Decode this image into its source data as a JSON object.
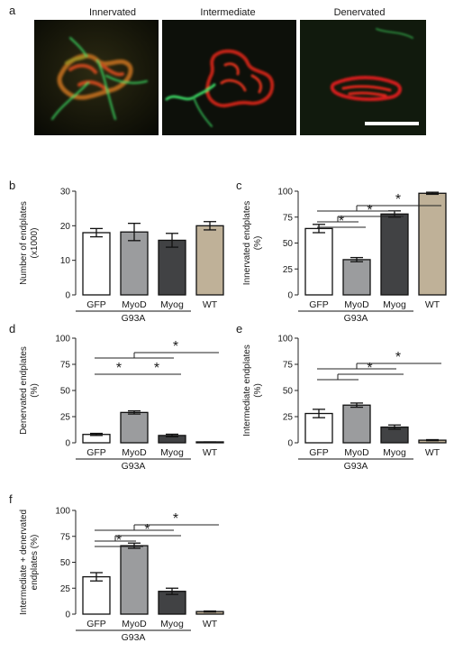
{
  "figure": {
    "panel_a": {
      "letter": "a",
      "labels": [
        "Innervated",
        "Intermediate",
        "Denervated"
      ]
    }
  },
  "chart_data": [
    {
      "panel": "b",
      "type": "bar",
      "categories": [
        "GFP",
        "MyoD",
        "Myog",
        "WT"
      ],
      "group_label": "G93A",
      "ylabel": [
        "Number of endplates",
        "(x1000)"
      ],
      "ylim": [
        0,
        30
      ],
      "yticks": [
        0,
        10,
        20,
        30
      ],
      "values": [
        18,
        18.2,
        15.8,
        20
      ],
      "errors": [
        1.2,
        2.5,
        2,
        1.2
      ],
      "colors": [
        "#ffffff",
        "#9b9c9e",
        "#414244",
        "#bfb198"
      ],
      "brackets": []
    },
    {
      "panel": "c",
      "type": "bar",
      "categories": [
        "GFP",
        "MyoD",
        "Myog",
        "WT"
      ],
      "group_label": "G93A",
      "ylabel": [
        "Innervated endplates",
        "(%)"
      ],
      "ylim": [
        0,
        100
      ],
      "yticks": [
        0,
        25,
        50,
        75,
        100
      ],
      "values": [
        64,
        34,
        78,
        98
      ],
      "errors": [
        4,
        2,
        3,
        1
      ],
      "colors": [
        "#ffffff",
        "#9b9c9e",
        "#414244",
        "#bfb198"
      ],
      "brackets": [
        {
          "from": [
            0
          ],
          "to": [
            1
          ],
          "level": 1,
          "label": "*"
        },
        {
          "from": [
            0,
            1
          ],
          "to": [
            2
          ],
          "level": 2,
          "label": "*"
        },
        {
          "from": [
            0,
            1,
            2
          ],
          "to": [
            3
          ],
          "level": 3,
          "label": "*"
        }
      ]
    },
    {
      "panel": "d",
      "type": "bar",
      "categories": [
        "GFP",
        "MyoD",
        "Myog",
        "WT"
      ],
      "group_label": "G93A",
      "ylabel": [
        "Denervated endplates",
        "(%)"
      ],
      "ylim": [
        0,
        100
      ],
      "yticks": [
        0,
        25,
        50,
        75,
        100
      ],
      "values": [
        8,
        29,
        7,
        0.5
      ],
      "errors": [
        1,
        1.5,
        1.2,
        0.3
      ],
      "colors": [
        "#ffffff",
        "#9b9c9e",
        "#414244",
        "#bfb198"
      ],
      "brackets": [
        {
          "from": [
            0
          ],
          "to": [
            1
          ],
          "level": 1,
          "label": "*"
        },
        {
          "from": [
            1
          ],
          "to": [
            2
          ],
          "level": 1,
          "label": "*"
        },
        {
          "from": [
            0,
            1,
            2
          ],
          "to": [
            3
          ],
          "level": 3,
          "label": "*"
        }
      ]
    },
    {
      "panel": "e",
      "type": "bar",
      "categories": [
        "GFP",
        "MyoD",
        "Myog",
        "WT"
      ],
      "group_label": "G93A",
      "ylabel": [
        "Intermediate endplates",
        "(%)"
      ],
      "ylim": [
        0,
        100
      ],
      "yticks": [
        0,
        25,
        50,
        75,
        100
      ],
      "values": [
        28,
        36,
        15,
        2.5
      ],
      "errors": [
        4,
        2,
        2,
        0.5
      ],
      "colors": [
        "#ffffff",
        "#9b9c9e",
        "#414244",
        "#bfb198"
      ],
      "brackets": [
        {
          "from": [
            0,
            1
          ],
          "to": [
            2
          ],
          "level": 1,
          "label": "*"
        },
        {
          "from": [
            0,
            1,
            2
          ],
          "to": [
            3
          ],
          "level": 2,
          "label": "*"
        }
      ]
    },
    {
      "panel": "f",
      "type": "bar",
      "categories": [
        "GFP",
        "MyoD",
        "Myog",
        "WT"
      ],
      "group_label": "G93A",
      "ylabel": [
        "Intermediate + denervated",
        "endplates (%)"
      ],
      "ylim": [
        0,
        100
      ],
      "yticks": [
        0,
        25,
        50,
        75,
        100
      ],
      "values": [
        36,
        66,
        22,
        2.5
      ],
      "errors": [
        4,
        2.5,
        3,
        0.5
      ],
      "colors": [
        "#ffffff",
        "#9b9c9e",
        "#414244",
        "#bfb198"
      ],
      "brackets": [
        {
          "from": [
            0
          ],
          "to": [
            1
          ],
          "level": 1,
          "label": "*"
        },
        {
          "from": [
            0,
            1
          ],
          "to": [
            2
          ],
          "level": 2,
          "label": "*"
        },
        {
          "from": [
            0,
            1,
            2
          ],
          "to": [
            3
          ],
          "level": 3,
          "label": "*"
        }
      ]
    }
  ]
}
